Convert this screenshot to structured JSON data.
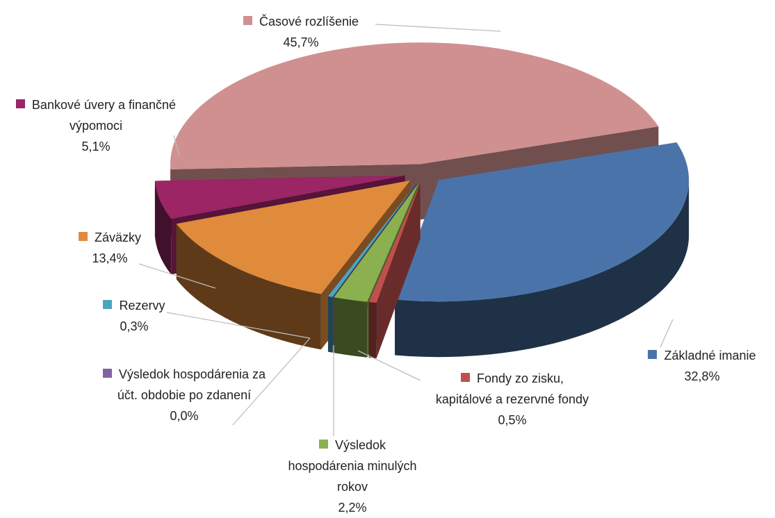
{
  "chart_data": {
    "type": "pie",
    "categories": [
      "Základné imanie",
      "Fondy zo zisku, kapitálové a rezervné fondy",
      "Výsledok hospodárenia minulých rokov",
      "Výsledok hospodárenia za účt. obdobie po zdanení",
      "Rezervy",
      "Záväzky",
      "Bankové úvery a finančné výpomoci",
      "Časové rozlíšenie"
    ],
    "values": [
      32.8,
      0.5,
      2.2,
      0.0,
      0.3,
      13.4,
      5.1,
      45.7
    ],
    "value_labels": [
      "32,8%",
      "0,5%",
      "2,2%",
      "0,0%",
      "0,3%",
      "13,4%",
      "5,1%",
      "45,7%"
    ],
    "colors": [
      "#4a74a9",
      "#c0504d",
      "#8bb04f",
      "#7f63a1",
      "#4aa6c0",
      "#e08a3c",
      "#9b2565",
      "#d09090"
    ]
  }
}
